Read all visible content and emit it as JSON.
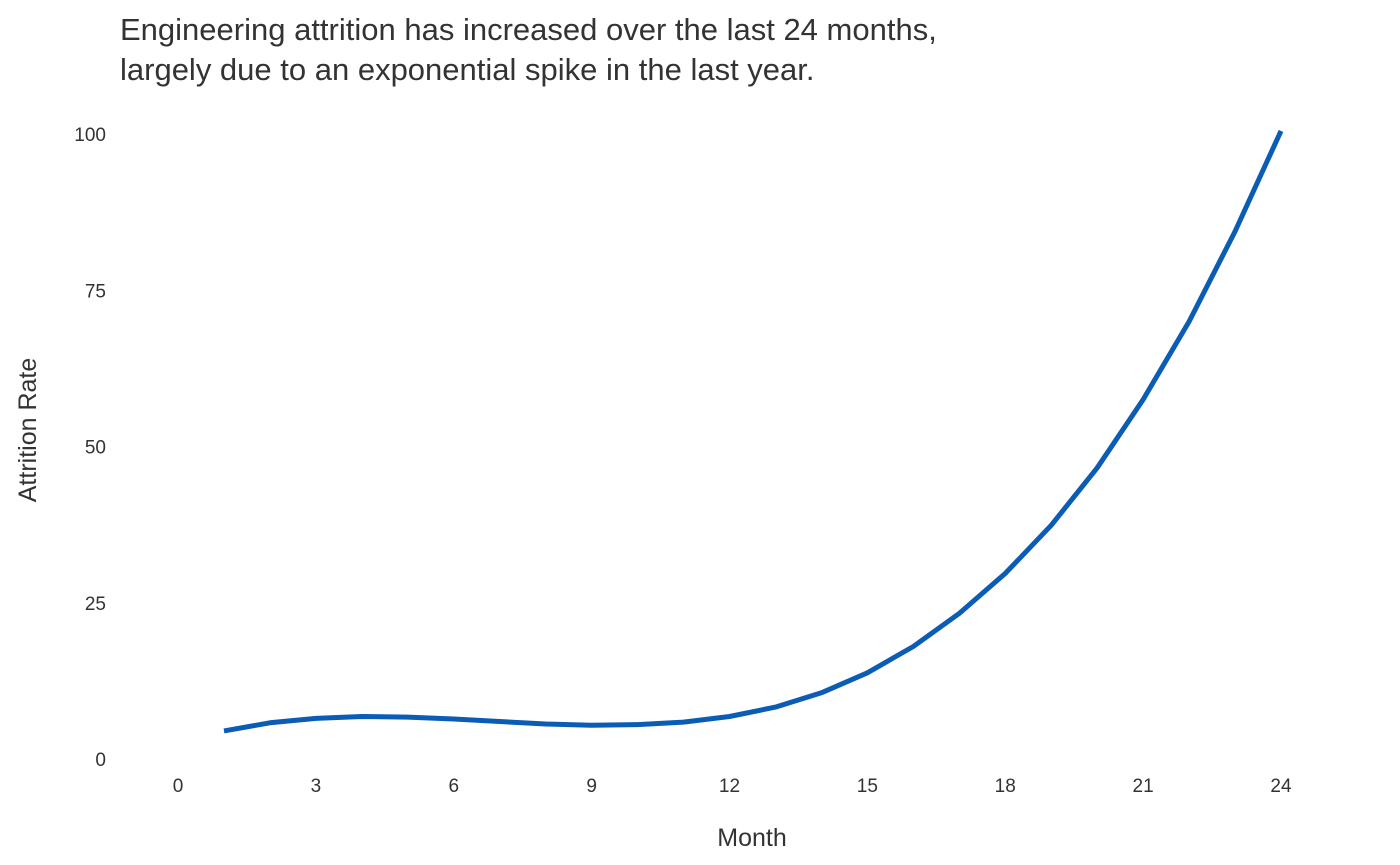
{
  "chart_data": {
    "type": "line",
    "title_lines": [
      "Engineering attrition has increased over the last 24 months,",
      "largely due to an exponential spike in the last year."
    ],
    "xlabel": "Month",
    "ylabel": "Attrition Rate",
    "xlim": [
      0,
      24
    ],
    "ylim": [
      0,
      100
    ],
    "x_ticks": [
      0,
      3,
      6,
      9,
      12,
      15,
      18,
      21,
      24
    ],
    "y_ticks": [
      0,
      25,
      50,
      75,
      100
    ],
    "grid": false,
    "series_color": "#0b5cb5",
    "x": [
      1,
      2,
      3,
      4,
      5,
      6,
      7,
      8,
      9,
      10,
      11,
      12,
      13,
      14,
      15,
      16,
      17,
      18,
      19,
      20,
      21,
      22,
      23,
      24
    ],
    "y": [
      4.5,
      5.8,
      6.5,
      6.8,
      6.7,
      6.4,
      6.0,
      5.6,
      5.4,
      5.5,
      5.9,
      6.8,
      8.3,
      10.6,
      13.8,
      18.0,
      23.3,
      29.7,
      37.4,
      46.6,
      57.5,
      70.0,
      84.4,
      100.5
    ]
  }
}
